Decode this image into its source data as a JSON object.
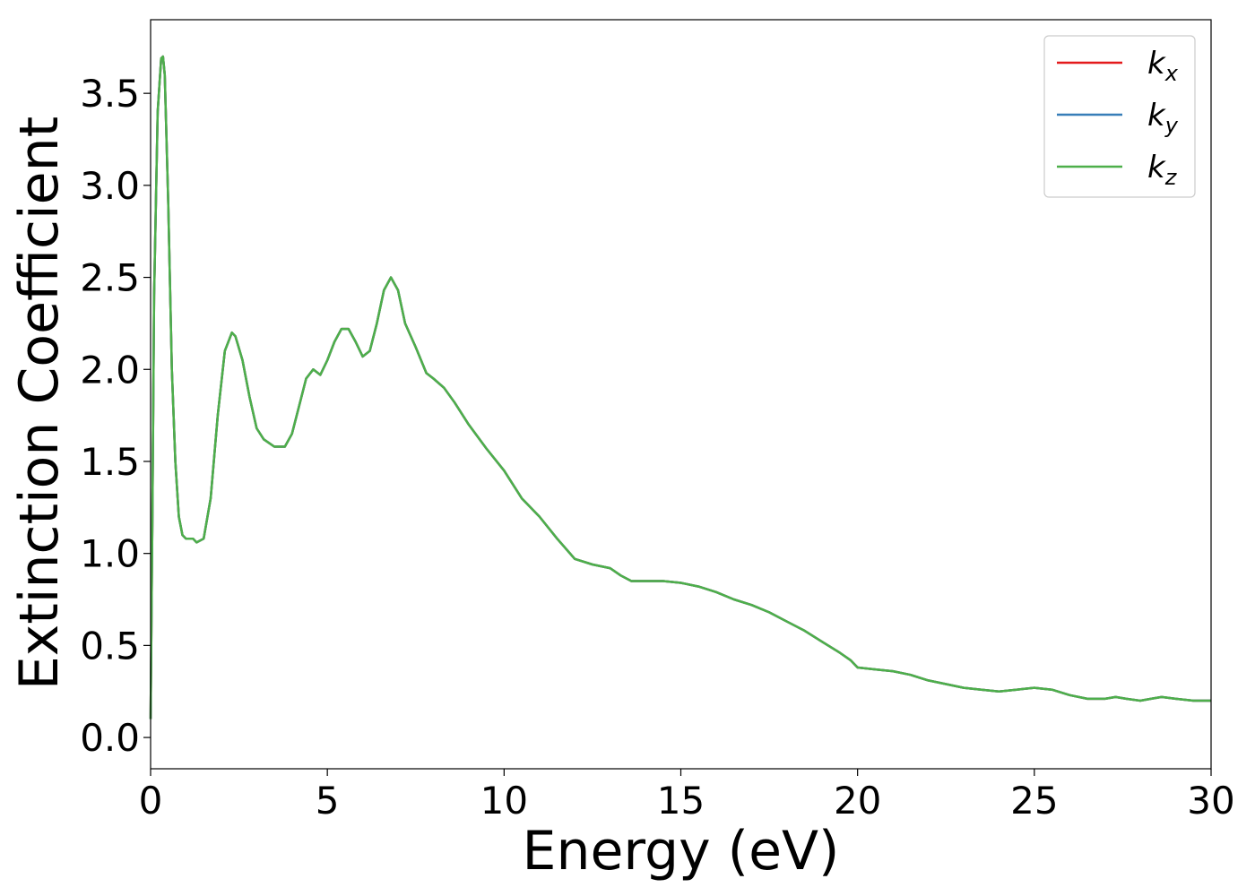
{
  "chart_data": {
    "type": "line",
    "title": "",
    "xlabel": "Energy (eV)",
    "ylabel": "Extinction Coefficient",
    "xlim": [
      0,
      30
    ],
    "ylim": [
      -0.17,
      3.9
    ],
    "xticks": [
      0,
      5,
      10,
      15,
      20,
      25,
      30
    ],
    "xtick_labels": [
      "0",
      "5",
      "10",
      "15",
      "20",
      "25",
      "30"
    ],
    "yticks": [
      0.0,
      0.5,
      1.0,
      1.5,
      2.0,
      2.5,
      3.0,
      3.5
    ],
    "ytick_labels": [
      "0.0",
      "0.5",
      "1.0",
      "1.5",
      "2.0",
      "2.5",
      "3.0",
      "3.5"
    ],
    "grid": false,
    "legend_position": "top-right",
    "x": [
      0,
      0.05,
      0.1,
      0.2,
      0.3,
      0.35,
      0.4,
      0.5,
      0.6,
      0.7,
      0.8,
      0.9,
      1.0,
      1.1,
      1.2,
      1.3,
      1.5,
      1.7,
      1.9,
      2.1,
      2.3,
      2.4,
      2.6,
      2.8,
      3.0,
      3.2,
      3.5,
      3.8,
      4.0,
      4.2,
      4.4,
      4.6,
      4.8,
      5.0,
      5.2,
      5.4,
      5.6,
      5.8,
      6.0,
      6.2,
      6.4,
      6.6,
      6.8,
      7.0,
      7.2,
      7.5,
      7.8,
      8.0,
      8.3,
      8.6,
      9.0,
      9.5,
      10.0,
      10.5,
      11.0,
      11.5,
      12.0,
      12.5,
      13.0,
      13.3,
      13.6,
      14.0,
      14.5,
      15.0,
      15.5,
      16.0,
      16.5,
      17.0,
      17.5,
      18.0,
      18.5,
      19.0,
      19.5,
      19.8,
      20.0,
      20.5,
      21.0,
      21.5,
      22.0,
      22.5,
      23.0,
      23.5,
      24.0,
      24.5,
      25.0,
      25.5,
      26.0,
      26.5,
      27.0,
      27.3,
      27.6,
      28.0,
      28.3,
      28.6,
      29.0,
      29.5,
      30.0
    ],
    "series": [
      {
        "name": "k_x",
        "color": "#e41a1c",
        "values": [
          0.1,
          1.2,
          2.4,
          3.4,
          3.69,
          3.7,
          3.6,
          2.9,
          2.0,
          1.5,
          1.2,
          1.1,
          1.08,
          1.08,
          1.08,
          1.06,
          1.08,
          1.3,
          1.75,
          2.1,
          2.2,
          2.18,
          2.05,
          1.85,
          1.68,
          1.62,
          1.58,
          1.58,
          1.65,
          1.8,
          1.95,
          2.0,
          1.97,
          2.05,
          2.15,
          2.22,
          2.22,
          2.15,
          2.07,
          2.1,
          2.25,
          2.43,
          2.5,
          2.43,
          2.25,
          2.12,
          1.98,
          1.95,
          1.9,
          1.82,
          1.7,
          1.57,
          1.45,
          1.3,
          1.2,
          1.08,
          0.97,
          0.94,
          0.92,
          0.88,
          0.85,
          0.85,
          0.85,
          0.84,
          0.82,
          0.79,
          0.75,
          0.72,
          0.68,
          0.63,
          0.58,
          0.52,
          0.46,
          0.42,
          0.38,
          0.37,
          0.36,
          0.34,
          0.31,
          0.29,
          0.27,
          0.26,
          0.25,
          0.26,
          0.27,
          0.26,
          0.23,
          0.21,
          0.21,
          0.22,
          0.21,
          0.2,
          0.21,
          0.22,
          0.21,
          0.2,
          0.2
        ]
      },
      {
        "name": "k_y",
        "color": "#377eb8",
        "values": [
          0.1,
          1.2,
          2.4,
          3.4,
          3.69,
          3.7,
          3.6,
          2.9,
          2.0,
          1.5,
          1.2,
          1.1,
          1.08,
          1.08,
          1.08,
          1.06,
          1.08,
          1.3,
          1.75,
          2.1,
          2.2,
          2.18,
          2.05,
          1.85,
          1.68,
          1.62,
          1.58,
          1.58,
          1.65,
          1.8,
          1.95,
          2.0,
          1.97,
          2.05,
          2.15,
          2.22,
          2.22,
          2.15,
          2.07,
          2.1,
          2.25,
          2.43,
          2.5,
          2.43,
          2.25,
          2.12,
          1.98,
          1.95,
          1.9,
          1.82,
          1.7,
          1.57,
          1.45,
          1.3,
          1.2,
          1.08,
          0.97,
          0.94,
          0.92,
          0.88,
          0.85,
          0.85,
          0.85,
          0.84,
          0.82,
          0.79,
          0.75,
          0.72,
          0.68,
          0.63,
          0.58,
          0.52,
          0.46,
          0.42,
          0.38,
          0.37,
          0.36,
          0.34,
          0.31,
          0.29,
          0.27,
          0.26,
          0.25,
          0.26,
          0.27,
          0.26,
          0.23,
          0.21,
          0.21,
          0.22,
          0.21,
          0.2,
          0.21,
          0.22,
          0.21,
          0.2,
          0.2
        ]
      },
      {
        "name": "k_z",
        "color": "#4daf4a",
        "values": [
          0.1,
          1.2,
          2.4,
          3.4,
          3.69,
          3.7,
          3.6,
          2.9,
          2.0,
          1.5,
          1.2,
          1.1,
          1.08,
          1.08,
          1.08,
          1.06,
          1.08,
          1.3,
          1.75,
          2.1,
          2.2,
          2.18,
          2.05,
          1.85,
          1.68,
          1.62,
          1.58,
          1.58,
          1.65,
          1.8,
          1.95,
          2.0,
          1.97,
          2.05,
          2.15,
          2.22,
          2.22,
          2.15,
          2.07,
          2.1,
          2.25,
          2.43,
          2.5,
          2.43,
          2.25,
          2.12,
          1.98,
          1.95,
          1.9,
          1.82,
          1.7,
          1.57,
          1.45,
          1.3,
          1.2,
          1.08,
          0.97,
          0.94,
          0.92,
          0.88,
          0.85,
          0.85,
          0.85,
          0.84,
          0.82,
          0.79,
          0.75,
          0.72,
          0.68,
          0.63,
          0.58,
          0.52,
          0.46,
          0.42,
          0.38,
          0.37,
          0.36,
          0.34,
          0.31,
          0.29,
          0.27,
          0.26,
          0.25,
          0.26,
          0.27,
          0.26,
          0.23,
          0.21,
          0.21,
          0.22,
          0.21,
          0.2,
          0.21,
          0.22,
          0.21,
          0.2,
          0.2
        ]
      }
    ],
    "legend": [
      {
        "base": "k",
        "sub": "x",
        "color": "#e41a1c"
      },
      {
        "base": "k",
        "sub": "y",
        "color": "#377eb8"
      },
      {
        "base": "k",
        "sub": "z",
        "color": "#4daf4a"
      }
    ]
  }
}
